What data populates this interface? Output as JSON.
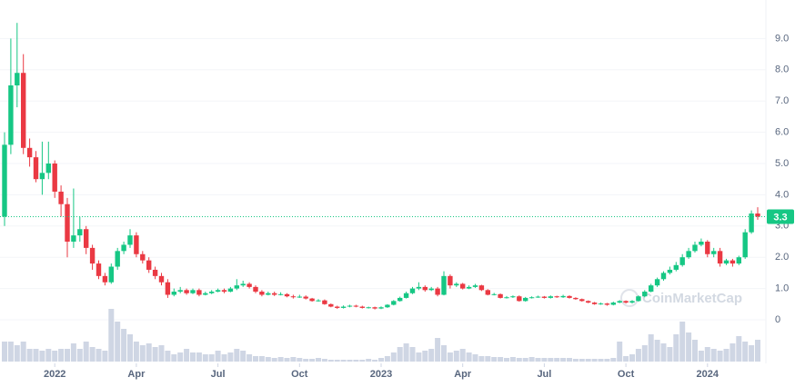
{
  "chart_data": {
    "type": "candlestick",
    "watermark": "CoinMarketCap",
    "up_color": "#16c784",
    "down_color": "#ea3943",
    "volume_color": "#cfd6e4",
    "grid": true,
    "ylim": [
      0,
      10
    ],
    "yticks": [
      0,
      {
        "value": 1,
        "label": "1.0"
      },
      {
        "value": 2,
        "label": "2.0"
      },
      {
        "value": 3,
        "label": "3.0"
      },
      {
        "value": 4,
        "label": "4.0"
      },
      {
        "value": 5,
        "label": "5.0"
      },
      {
        "value": 6,
        "label": "6.0"
      },
      {
        "value": 7,
        "label": "7.0"
      },
      {
        "value": 8,
        "label": "8.0"
      },
      {
        "value": 9,
        "label": "9.0"
      }
    ],
    "xticks": [
      {
        "value": 8,
        "label": "2022"
      },
      {
        "value": 21,
        "label": "Apr"
      },
      {
        "value": 34,
        "label": "Jul"
      },
      {
        "value": 47,
        "label": "Oct"
      },
      {
        "value": 60,
        "label": "2023"
      },
      {
        "value": 73,
        "label": "Apr"
      },
      {
        "value": 86,
        "label": "Jul"
      },
      {
        "value": 99,
        "label": "Oct"
      },
      {
        "value": 112,
        "label": "2024"
      }
    ],
    "last_price": 3.3,
    "open": [
      3.3,
      5.6,
      7.5,
      7.9,
      5.5,
      5.2,
      4.5,
      4.7,
      5.0,
      4.1,
      3.7,
      2.5,
      2.7,
      2.9,
      2.3,
      1.8,
      1.4,
      1.2,
      1.7,
      2.2,
      2.4,
      2.7,
      2.1,
      1.9,
      1.6,
      1.4,
      1.2,
      0.8,
      0.9,
      0.95,
      0.85,
      0.95,
      0.8,
      0.85,
      0.9,
      0.95,
      0.9,
      1.0,
      1.1,
      1.15,
      1.05,
      0.9,
      0.8,
      0.85,
      0.8,
      0.82,
      0.75,
      0.72,
      0.74,
      0.68,
      0.6,
      0.62,
      0.5,
      0.42,
      0.38,
      0.42,
      0.45,
      0.42,
      0.38,
      0.4,
      0.36,
      0.4,
      0.48,
      0.6,
      0.7,
      0.85,
      1.0,
      1.05,
      0.95,
      1.0,
      0.8,
      1.4,
      1.1,
      1.15,
      1.0,
      1.05,
      1.1,
      0.95,
      0.8,
      0.82,
      0.7,
      0.72,
      0.75,
      0.6,
      0.7,
      0.72,
      0.74,
      0.7,
      0.75,
      0.72,
      0.76,
      0.7,
      0.66,
      0.6,
      0.55,
      0.5,
      0.52,
      0.48,
      0.55,
      0.6,
      0.55,
      0.6,
      0.75,
      0.9,
      1.1,
      1.3,
      1.5,
      1.6,
      1.75,
      2.0,
      2.2,
      2.4,
      2.5,
      2.1,
      2.2,
      1.8,
      1.9,
      1.8,
      2.0,
      2.8,
      3.4
    ],
    "high": [
      6.0,
      9.0,
      9.5,
      8.5,
      5.8,
      5.4,
      5.7,
      5.7,
      5.1,
      4.3,
      3.9,
      4.2,
      3.3,
      3.0,
      2.4,
      1.9,
      1.5,
      1.8,
      2.3,
      2.5,
      2.9,
      2.8,
      2.2,
      2.0,
      1.7,
      1.5,
      1.3,
      1.0,
      1.05,
      1.0,
      1.0,
      1.0,
      0.9,
      0.95,
      1.0,
      1.0,
      1.05,
      1.3,
      1.25,
      1.2,
      1.1,
      0.95,
      0.9,
      0.9,
      0.88,
      0.85,
      0.8,
      0.8,
      0.78,
      0.7,
      0.66,
      0.65,
      0.52,
      0.45,
      0.46,
      0.48,
      0.48,
      0.45,
      0.42,
      0.42,
      0.43,
      0.5,
      0.63,
      0.74,
      0.9,
      1.05,
      1.2,
      1.1,
      1.05,
      1.05,
      1.55,
      1.45,
      1.2,
      1.18,
      1.1,
      1.15,
      1.12,
      0.98,
      0.86,
      0.84,
      0.76,
      0.78,
      0.78,
      0.73,
      0.75,
      0.77,
      0.76,
      0.78,
      0.77,
      0.8,
      0.78,
      0.72,
      0.68,
      0.62,
      0.57,
      0.55,
      0.54,
      0.58,
      0.63,
      0.62,
      0.63,
      0.78,
      0.95,
      1.15,
      1.35,
      1.55,
      1.7,
      1.85,
      2.1,
      2.3,
      2.5,
      2.6,
      2.55,
      2.3,
      2.3,
      1.95,
      1.95,
      2.05,
      2.9,
      3.5,
      3.6
    ],
    "low": [
      3.0,
      5.3,
      6.8,
      5.3,
      4.9,
      4.4,
      4.0,
      4.5,
      3.9,
      3.3,
      2.0,
      2.3,
      2.5,
      2.1,
      1.6,
      1.3,
      1.1,
      1.15,
      1.6,
      2.1,
      2.3,
      2.0,
      1.8,
      1.5,
      1.3,
      1.1,
      0.7,
      0.75,
      0.85,
      0.8,
      0.82,
      0.75,
      0.78,
      0.82,
      0.88,
      0.85,
      0.88,
      0.95,
      1.05,
      1.0,
      0.85,
      0.75,
      0.78,
      0.76,
      0.78,
      0.72,
      0.68,
      0.7,
      0.65,
      0.58,
      0.58,
      0.48,
      0.4,
      0.35,
      0.36,
      0.4,
      0.4,
      0.36,
      0.36,
      0.33,
      0.34,
      0.38,
      0.46,
      0.58,
      0.68,
      0.82,
      0.95,
      0.9,
      0.92,
      0.75,
      0.78,
      1.0,
      1.05,
      0.97,
      0.98,
      1.02,
      0.92,
      0.78,
      0.78,
      0.68,
      0.68,
      0.7,
      0.58,
      0.58,
      0.68,
      0.7,
      0.68,
      0.68,
      0.7,
      0.7,
      0.68,
      0.64,
      0.58,
      0.53,
      0.48,
      0.48,
      0.45,
      0.46,
      0.53,
      0.52,
      0.52,
      0.58,
      0.72,
      0.88,
      1.05,
      1.25,
      1.45,
      1.55,
      1.7,
      1.95,
      2.15,
      2.35,
      2.0,
      2.0,
      1.7,
      1.75,
      1.7,
      1.75,
      1.95,
      2.75,
      3.2
    ],
    "close": [
      5.6,
      7.5,
      7.9,
      5.5,
      5.2,
      4.5,
      4.7,
      5.0,
      4.1,
      3.7,
      2.5,
      2.7,
      2.9,
      2.3,
      1.8,
      1.4,
      1.2,
      1.7,
      2.2,
      2.4,
      2.7,
      2.1,
      1.9,
      1.6,
      1.4,
      1.2,
      0.8,
      0.9,
      0.95,
      0.85,
      0.95,
      0.8,
      0.85,
      0.9,
      0.95,
      0.9,
      1.0,
      1.1,
      1.15,
      1.05,
      0.9,
      0.8,
      0.85,
      0.8,
      0.82,
      0.75,
      0.72,
      0.74,
      0.68,
      0.6,
      0.62,
      0.5,
      0.42,
      0.38,
      0.42,
      0.45,
      0.42,
      0.38,
      0.4,
      0.36,
      0.4,
      0.48,
      0.6,
      0.7,
      0.85,
      1.0,
      1.05,
      0.95,
      1.0,
      0.8,
      1.4,
      1.1,
      1.15,
      1.0,
      1.05,
      1.1,
      0.95,
      0.8,
      0.82,
      0.7,
      0.72,
      0.75,
      0.6,
      0.7,
      0.72,
      0.74,
      0.7,
      0.75,
      0.72,
      0.76,
      0.7,
      0.66,
      0.6,
      0.55,
      0.5,
      0.52,
      0.48,
      0.55,
      0.6,
      0.55,
      0.6,
      0.75,
      0.9,
      1.1,
      1.3,
      1.5,
      1.6,
      1.75,
      2.0,
      2.2,
      2.4,
      2.5,
      2.1,
      2.2,
      1.8,
      1.9,
      1.8,
      2.0,
      2.8,
      3.4,
      3.3
    ],
    "volume": [
      22,
      22,
      18,
      22,
      14,
      14,
      12,
      14,
      12,
      14,
      14,
      20,
      14,
      22,
      16,
      14,
      12,
      58,
      44,
      36,
      30,
      22,
      18,
      20,
      16,
      18,
      12,
      8,
      10,
      14,
      10,
      10,
      8,
      8,
      12,
      8,
      10,
      14,
      12,
      8,
      6,
      6,
      5,
      4,
      5,
      4,
      5,
      4,
      3,
      3,
      4,
      3,
      2,
      2,
      2,
      2,
      2,
      2,
      3,
      2,
      4,
      6,
      10,
      16,
      20,
      16,
      10,
      12,
      14,
      26,
      18,
      10,
      12,
      14,
      10,
      8,
      6,
      6,
      5,
      5,
      4,
      5,
      4,
      4,
      5,
      4,
      4,
      4,
      4,
      4,
      4,
      3,
      3,
      3,
      3,
      3,
      3,
      4,
      22,
      6,
      8,
      14,
      18,
      30,
      24,
      20,
      16,
      30,
      44,
      32,
      24,
      12,
      16,
      14,
      12,
      14,
      20,
      28,
      22,
      18,
      24
    ]
  }
}
